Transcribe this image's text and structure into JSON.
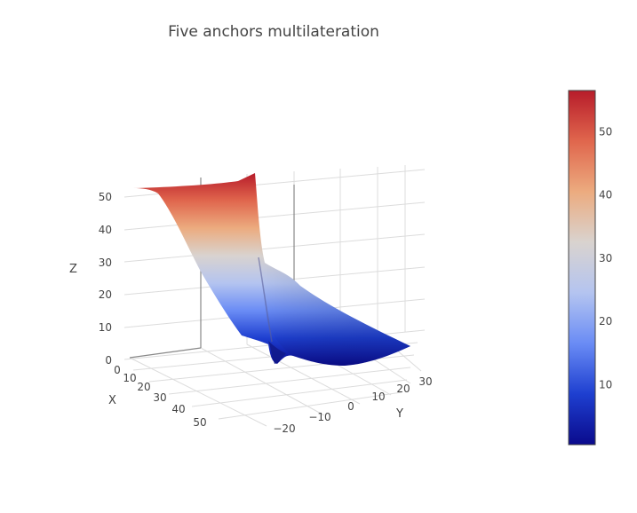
{
  "chart_data": {
    "type": "surface",
    "title": "Five anchors multilateration",
    "xlabel": "X",
    "ylabel": "Y",
    "zlabel": "Z",
    "x_ticks": [
      "0",
      "10",
      "20",
      "30",
      "40",
      "50"
    ],
    "y_ticks": [
      "−20",
      "−10",
      "0",
      "10",
      "20",
      "30"
    ],
    "z_ticks": [
      "0",
      "10",
      "20",
      "30",
      "40",
      "50"
    ],
    "xlim": [
      0,
      55
    ],
    "ylim": [
      -25,
      32
    ],
    "zlim": [
      0,
      56
    ],
    "colorbar": {
      "ticks": [
        "10",
        "20",
        "30",
        "40",
        "50"
      ],
      "tick_values": [
        10,
        20,
        30,
        40,
        50
      ],
      "range": [
        0.5,
        56.5
      ],
      "colorscale": "coolwarm",
      "colors": [
        "#0a0a8c",
        "#1e3fd0",
        "#6a8cf5",
        "#b4c4f0",
        "#d9d3cf",
        "#ecab7f",
        "#e0664d",
        "#b71c2a"
      ]
    },
    "grid": true,
    "surface_shape": "sloped surface, highest (about 53) near X=0, descending toward large X, with a sharp dip near the middle of the Y range"
  }
}
